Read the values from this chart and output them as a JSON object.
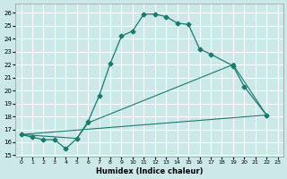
{
  "xlabel": "Humidex (Indice chaleur)",
  "background_color": "#cce8e8",
  "line_color": "#1a7a6e",
  "grid_color": "#ffffff",
  "xlim": [
    -0.5,
    23.5
  ],
  "ylim": [
    14.9,
    26.7
  ],
  "yticks": [
    15,
    16,
    17,
    18,
    19,
    20,
    21,
    22,
    23,
    24,
    25,
    26
  ],
  "xticks": [
    0,
    1,
    2,
    3,
    4,
    5,
    6,
    7,
    8,
    9,
    10,
    11,
    12,
    13,
    14,
    15,
    16,
    17,
    18,
    19,
    20,
    21,
    22,
    23
  ],
  "curve1_x": [
    0,
    1,
    2,
    3,
    4,
    5,
    6,
    7,
    8,
    9,
    10,
    11,
    12,
    13,
    14,
    15,
    16,
    17,
    19,
    20,
    22
  ],
  "curve1_y": [
    16.6,
    16.4,
    16.2,
    16.2,
    15.5,
    16.3,
    17.6,
    19.6,
    22.1,
    24.2,
    24.6,
    25.9,
    25.9,
    25.7,
    25.2,
    25.1,
    23.2,
    22.8,
    21.9,
    20.3,
    18.1
  ],
  "curve2_x": [
    0,
    5,
    6,
    19,
    22
  ],
  "curve2_y": [
    16.6,
    16.3,
    17.5,
    22.0,
    18.1
  ],
  "curve3_x": [
    0,
    22
  ],
  "curve3_y": [
    16.6,
    18.1
  ]
}
